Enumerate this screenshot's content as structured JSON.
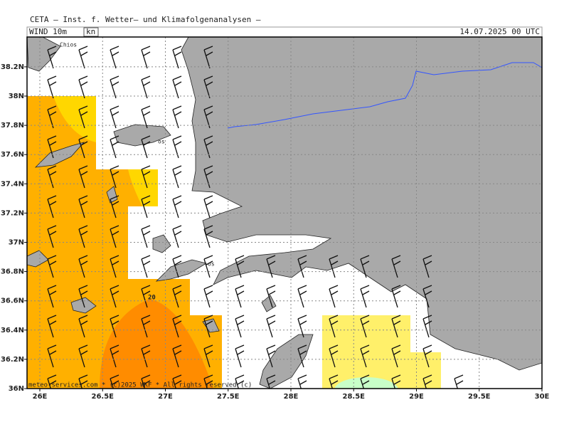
{
  "header": {
    "title": "CETA — Inst. f. Wetter— und Klimafolgenanalysen —",
    "field": "WIND 10m",
    "unit": "kn",
    "valid_time": "14.07.2025 00 UTC"
  },
  "map": {
    "lat_ticks": [
      {
        "value": 36,
        "label": "36N"
      },
      {
        "value": 36.2,
        "label": "36.2N"
      },
      {
        "value": 36.4,
        "label": "36.4N"
      },
      {
        "value": 36.6,
        "label": "36.6N"
      },
      {
        "value": 36.8,
        "label": "36.8N"
      },
      {
        "value": 37,
        "label": "37N"
      },
      {
        "value": 37.2,
        "label": "37.2N"
      },
      {
        "value": 37.4,
        "label": "37.4N"
      },
      {
        "value": 37.6,
        "label": "37.6N"
      },
      {
        "value": 37.8,
        "label": "37.8N"
      },
      {
        "value": 38,
        "label": "38N"
      },
      {
        "value": 38.2,
        "label": "38.2N"
      }
    ],
    "lon_ticks": [
      {
        "value": 26,
        "label": "26E"
      },
      {
        "value": 26.5,
        "label": "26.5E"
      },
      {
        "value": 27,
        "label": "27E"
      },
      {
        "value": 27.5,
        "label": "27.5E"
      },
      {
        "value": 28,
        "label": "28E"
      },
      {
        "value": 28.5,
        "label": "28.5E"
      },
      {
        "value": 29,
        "label": "29E"
      },
      {
        "value": 29.5,
        "label": "29.5E"
      },
      {
        "value": 30,
        "label": "30E"
      }
    ],
    "contour_label": "20",
    "place_labels": [
      "Chios",
      "os",
      "os"
    ],
    "footer": "meteo-services.com * (c)2025 WKF * All rights reserved (c)"
  }
}
